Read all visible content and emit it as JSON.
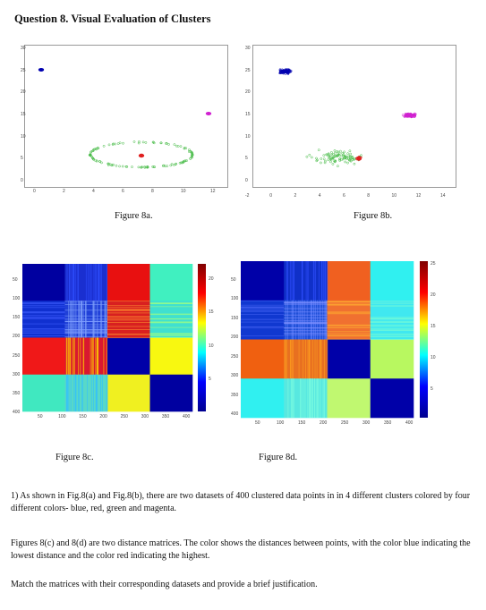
{
  "title": "Question 8. Visual Evaluation of Clusters",
  "figures": {
    "a": {
      "caption": "Figure 8a.",
      "x_ticks": [
        "0",
        "2",
        "4",
        "6",
        "8",
        "10",
        "12"
      ],
      "y_ticks": [
        "30",
        "25",
        "20",
        "15",
        "10",
        "5",
        "0"
      ]
    },
    "b": {
      "caption": "Figure 8b.",
      "x_ticks": [
        "-2",
        "0",
        "2",
        "4",
        "6",
        "8",
        "10",
        "12",
        "14"
      ],
      "y_ticks": [
        "30",
        "25",
        "20",
        "15",
        "10",
        "5",
        "0"
      ]
    },
    "c": {
      "caption": "Figure 8c.",
      "x_ticks": [
        "50",
        "100",
        "150",
        "200",
        "250",
        "300",
        "350",
        "400"
      ],
      "y_ticks": [
        "50",
        "100",
        "150",
        "200",
        "250",
        "300",
        "350",
        "400"
      ],
      "colorbar_ticks": [
        "20",
        "15",
        "10",
        "5"
      ]
    },
    "d": {
      "caption": "Figure 8d.",
      "x_ticks": [
        "50",
        "100",
        "150",
        "200",
        "250",
        "300",
        "350",
        "400"
      ],
      "y_ticks": [
        "50",
        "100",
        "150",
        "200",
        "250",
        "300",
        "350",
        "400"
      ],
      "colorbar_ticks": [
        "25",
        "20",
        "15",
        "10",
        "5"
      ]
    }
  },
  "text": {
    "p1": "1)  As shown in Fig.8(a) and Fig.8(b), there are two datasets of 400 clustered data points in in 4 different clusters colored by four different colors- blue, red, green and magenta.",
    "p2": "Figures 8(c) and 8(d) are two distance matrices. The color shows the distances between points, with the color blue indicating the lowest distance and the color red indicating the highest.",
    "p3": "Match the matrices with their corresponding datasets and provide a brief justification."
  },
  "colors": {
    "blue": "#0000b0",
    "red": "#e02020",
    "green": "#44bb44",
    "magenta": "#d020d0"
  }
}
